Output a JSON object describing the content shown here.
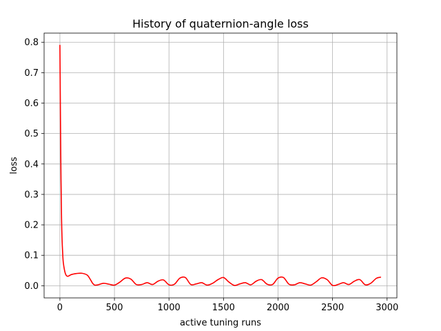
{
  "chart_data": {
    "type": "line",
    "title": "History of quaternion-angle loss",
    "xlabel": "active tuning runs",
    "ylabel": "loss",
    "xlim": [
      -145,
      3090
    ],
    "ylim": [
      -0.04,
      0.83
    ],
    "xticks": [
      0,
      500,
      1000,
      1500,
      2000,
      2500,
      3000
    ],
    "xtick_labels": [
      "0",
      "500",
      "1000",
      "1500",
      "2000",
      "2500",
      "3000"
    ],
    "yticks": [
      0.0,
      0.1,
      0.2,
      0.3,
      0.4,
      0.5,
      0.6,
      0.7,
      0.8
    ],
    "ytick_labels": [
      "0.0",
      "0.1",
      "0.2",
      "0.3",
      "0.4",
      "0.5",
      "0.6",
      "0.7",
      "0.8"
    ],
    "grid": true,
    "series": [
      {
        "color": "#ff0000",
        "x": [
          0,
          5,
          10,
          15,
          20,
          25,
          30,
          40,
          50,
          60,
          70,
          80,
          100,
          120,
          150,
          200,
          250,
          280,
          300,
          320,
          350,
          400,
          450,
          500,
          550,
          600,
          650,
          700,
          750,
          800,
          850,
          900,
          950,
          1000,
          1050,
          1100,
          1150,
          1200,
          1250,
          1300,
          1350,
          1400,
          1450,
          1500,
          1550,
          1600,
          1650,
          1700,
          1750,
          1800,
          1850,
          1900,
          1950,
          2000,
          2050,
          2100,
          2150,
          2200,
          2250,
          2300,
          2350,
          2400,
          2450,
          2500,
          2550,
          2600,
          2650,
          2700,
          2750,
          2800,
          2850,
          2900,
          2940
        ],
        "y": [
          0.79,
          0.55,
          0.35,
          0.22,
          0.15,
          0.11,
          0.08,
          0.055,
          0.04,
          0.033,
          0.031,
          0.032,
          0.036,
          0.038,
          0.04,
          0.041,
          0.035,
          0.02,
          0.008,
          0.002,
          0.003,
          0.008,
          0.005,
          0.002,
          0.012,
          0.025,
          0.022,
          0.004,
          0.004,
          0.01,
          0.004,
          0.015,
          0.019,
          0.003,
          0.005,
          0.025,
          0.027,
          0.004,
          0.006,
          0.01,
          0.002,
          0.008,
          0.02,
          0.027,
          0.012,
          0.001,
          0.006,
          0.01,
          0.003,
          0.015,
          0.02,
          0.005,
          0.004,
          0.025,
          0.027,
          0.005,
          0.003,
          0.01,
          0.006,
          0.002,
          0.013,
          0.026,
          0.02,
          0.001,
          0.004,
          0.01,
          0.004,
          0.015,
          0.02,
          0.003,
          0.008,
          0.024,
          0.028
        ]
      }
    ]
  }
}
